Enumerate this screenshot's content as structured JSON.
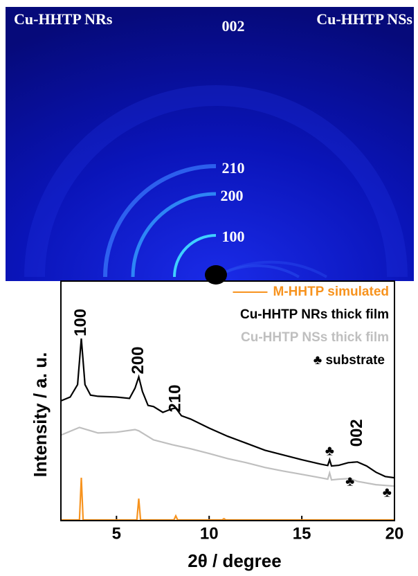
{
  "image": {
    "labels": [
      "Cu-HHTP NRs",
      "002",
      "Cu-HHTP NSs",
      "210",
      "200",
      "100"
    ]
  },
  "chart_data": {
    "type": "line",
    "xlabel": "2θ / degree",
    "ylabel": "Intensity / a. u.",
    "xlim": [
      2,
      20
    ],
    "xticks": [
      5,
      10,
      15,
      20
    ],
    "ylim": [
      0,
      100
    ],
    "series": [
      {
        "name": "M-HHTP simulated",
        "color": "#f7931e",
        "x": [
          2,
          3.0,
          3.1,
          3.2,
          6.1,
          6.2,
          6.3,
          8.1,
          8.2,
          8.3,
          10.7,
          10.8,
          10.9,
          20
        ],
        "values": [
          0.3,
          0.3,
          17.9,
          0.3,
          0.3,
          9.2,
          0.3,
          0.3,
          2,
          0.3,
          0.3,
          0.8,
          0.3,
          0.3
        ]
      },
      {
        "name": "Cu-HHTP NRs thick film",
        "color": "#000000",
        "x": [
          2,
          2.5,
          2.9,
          3.1,
          3.3,
          3.6,
          4,
          5,
          5.7,
          6.0,
          6.2,
          6.4,
          6.7,
          7,
          7.5,
          8.0,
          8.2,
          8.5,
          9,
          10,
          11,
          12,
          13,
          14,
          15,
          16,
          16.4,
          16.5,
          16.6,
          17,
          17.5,
          18,
          18.5,
          19,
          19.5,
          20
        ],
        "values": [
          50,
          51.6,
          56.8,
          76,
          56.8,
          52.4,
          51.9,
          51.6,
          51,
          55.3,
          60,
          53.9,
          48.1,
          47.6,
          45.2,
          46.7,
          47,
          43.8,
          42.4,
          38.6,
          35.2,
          32.3,
          29.4,
          27.4,
          25.4,
          23.6,
          23,
          25.4,
          22.8,
          23.1,
          24.2,
          24.5,
          22.8,
          20.2,
          18.4,
          17.9
        ]
      },
      {
        "name": "Cu-HHTP NSs thick film",
        "color": "#bfbfbf",
        "x": [
          2,
          3,
          4,
          5,
          6,
          6.2,
          7,
          8,
          9,
          10,
          11,
          12,
          13,
          14,
          15,
          16,
          16.4,
          16.5,
          16.6,
          17,
          17.6,
          18,
          19,
          20
        ],
        "values": [
          35.7,
          38.9,
          36.6,
          36.9,
          38,
          37.5,
          33.7,
          31.7,
          30,
          28,
          25.9,
          24.2,
          22.2,
          20.7,
          19.3,
          17.9,
          17.3,
          19.9,
          17,
          17.3,
          17.6,
          16.4,
          15,
          14.4
        ]
      }
    ],
    "peak_labels": [
      {
        "text": "100",
        "x": 3.1,
        "y": 82.7
      },
      {
        "text": "200",
        "x": 6.2,
        "y": 66.9
      },
      {
        "text": "210",
        "x": 8.2,
        "y": 51
      },
      {
        "text": "002",
        "x": 18,
        "y": 36.6
      }
    ],
    "substrate_marks": [
      {
        "text": "♣",
        "x": 16.5,
        "y": 28.8
      },
      {
        "text": "♣",
        "x": 17.6,
        "y": 16.1
      },
      {
        "text": "♣",
        "x": 19.6,
        "y": 11.5
      }
    ],
    "legend": {
      "position": "upper right",
      "extra": "♣ substrate"
    }
  }
}
